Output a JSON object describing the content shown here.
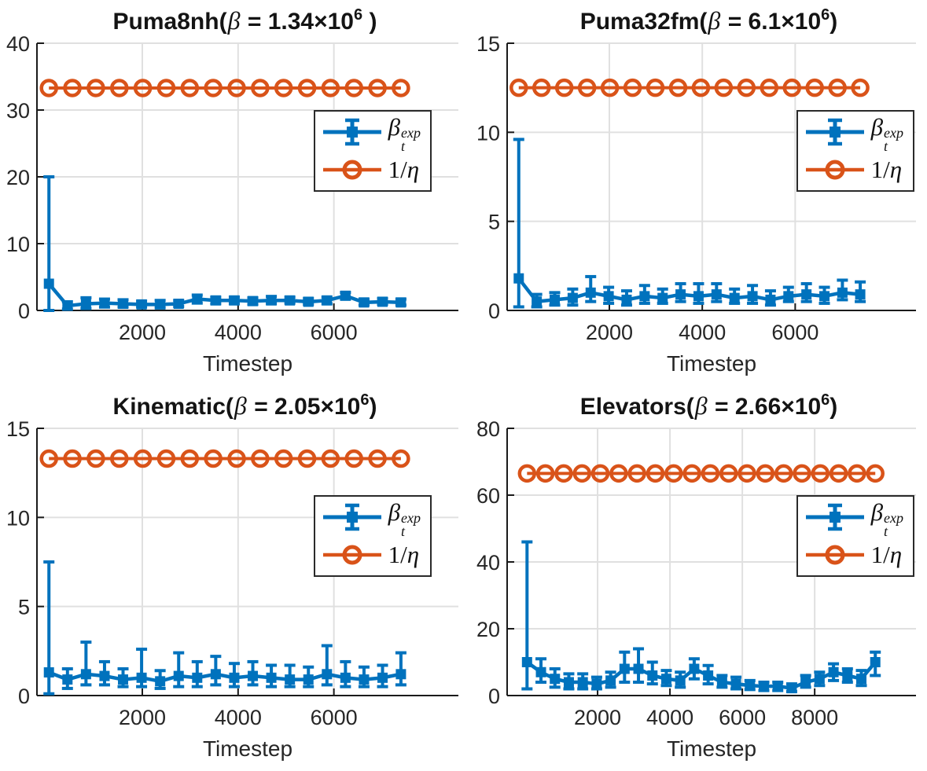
{
  "colors": {
    "beta_series": "#0072BD",
    "eta_series": "#D95319",
    "grid": "#E0E0E0",
    "axis": "#1a1a1a",
    "tick_text": "#262626"
  },
  "legend": {
    "beta": {
      "base": "β",
      "sub": "t",
      "sup": "exp"
    },
    "eta": {
      "num": "1/",
      "sym": "η"
    }
  },
  "chart_data": [
    {
      "type": "line",
      "dataset": "Puma8nh",
      "title": "Puma8nh(β = 1.34×10^6 )",
      "title_parts": {
        "name": "Puma8nh(",
        "beta": "β",
        "eq": " = 1.34×10",
        "exp": "6",
        "close": " )"
      },
      "xlabel": "Timestep",
      "xlim": [
        -200,
        8600
      ],
      "ylim": [
        0,
        40
      ],
      "xticks": [
        2000,
        4000,
        6000
      ],
      "yticks": [
        0,
        10,
        20,
        30,
        40
      ],
      "grid": true,
      "legend_position": "upper right",
      "series": [
        {
          "name": "beta_t_exp",
          "label": "β_t^exp",
          "type": "errorbar",
          "color": "#0072BD",
          "x": [
            50,
            437,
            824,
            1211,
            1598,
            1985,
            2372,
            2759,
            3146,
            3533,
            3920,
            4307,
            4694,
            5081,
            5468,
            5855,
            6242,
            6629,
            7016,
            7400
          ],
          "y": [
            4.0,
            0.7,
            1.0,
            1.1,
            1.0,
            0.9,
            0.9,
            1.0,
            1.7,
            1.5,
            1.5,
            1.4,
            1.5,
            1.5,
            1.3,
            1.5,
            2.2,
            1.2,
            1.3,
            1.2
          ],
          "y_lo": [
            0.0,
            0.2,
            0.3,
            0.5,
            0.5,
            0.5,
            0.4,
            0.6,
            1.1,
            1.0,
            1.0,
            0.9,
            1.0,
            1.1,
            0.9,
            1.0,
            1.7,
            0.8,
            0.9,
            0.8
          ],
          "y_hi": [
            20.0,
            1.3,
            1.9,
            1.7,
            1.6,
            1.4,
            1.5,
            1.5,
            2.3,
            2.0,
            2.0,
            1.9,
            2.1,
            2.0,
            1.8,
            2.0,
            2.7,
            1.7,
            1.8,
            1.7
          ]
        },
        {
          "name": "one_over_eta",
          "label": "1/η",
          "type": "line_circles",
          "color": "#D95319",
          "value": 33.3,
          "x_start": 50,
          "x_end": 7400,
          "n_markers": 16
        }
      ]
    },
    {
      "type": "line",
      "dataset": "Puma32fm",
      "title": "Puma32fm(β = 6.1×10^6)",
      "title_parts": {
        "name": "Puma32fm(",
        "beta": "β",
        "eq": " = 6.1×10",
        "exp": "6",
        "close": ")"
      },
      "xlabel": "Timestep",
      "xlim": [
        -200,
        8600
      ],
      "ylim": [
        0,
        15
      ],
      "xticks": [
        2000,
        4000,
        6000
      ],
      "yticks": [
        0,
        5,
        10,
        15
      ],
      "grid": true,
      "legend_position": "upper right",
      "series": [
        {
          "name": "beta_t_exp",
          "label": "β_t^exp",
          "type": "errorbar",
          "color": "#0072BD",
          "x": [
            50,
            437,
            824,
            1211,
            1598,
            1985,
            2372,
            2759,
            3146,
            3533,
            3920,
            4307,
            4694,
            5081,
            5468,
            5855,
            6242,
            6629,
            7016,
            7400
          ],
          "y": [
            1.8,
            0.5,
            0.6,
            0.7,
            1.0,
            0.8,
            0.6,
            0.8,
            0.7,
            0.9,
            0.8,
            0.9,
            0.7,
            0.8,
            0.6,
            0.8,
            0.9,
            0.8,
            1.0,
            0.9
          ],
          "y_lo": [
            0.2,
            0.2,
            0.3,
            0.3,
            0.5,
            0.4,
            0.3,
            0.4,
            0.4,
            0.5,
            0.4,
            0.5,
            0.4,
            0.4,
            0.3,
            0.5,
            0.5,
            0.4,
            0.6,
            0.5
          ],
          "y_hi": [
            9.6,
            0.9,
            1.0,
            1.2,
            1.9,
            1.3,
            1.1,
            1.4,
            1.2,
            1.5,
            1.5,
            1.5,
            1.2,
            1.4,
            1.1,
            1.3,
            1.5,
            1.3,
            1.7,
            1.6
          ]
        },
        {
          "name": "one_over_eta",
          "label": "1/η",
          "type": "line_circles",
          "color": "#D95319",
          "value": 12.5,
          "x_start": 50,
          "x_end": 7400,
          "n_markers": 16
        }
      ]
    },
    {
      "type": "line",
      "dataset": "Kinematic",
      "title": "Kinematic(β = 2.05×10^6)",
      "title_parts": {
        "name": "Kinematic(",
        "beta": "β",
        "eq": " = 2.05×10",
        "exp": "6",
        "close": ")"
      },
      "xlabel": "Timestep",
      "xlim": [
        -200,
        8600
      ],
      "ylim": [
        0,
        15
      ],
      "xticks": [
        2000,
        4000,
        6000
      ],
      "yticks": [
        0,
        5,
        10,
        15
      ],
      "grid": true,
      "legend_position": "upper right",
      "series": [
        {
          "name": "beta_t_exp",
          "label": "β_t^exp",
          "type": "errorbar",
          "color": "#0072BD",
          "x": [
            50,
            437,
            824,
            1211,
            1598,
            1985,
            2372,
            2759,
            3146,
            3533,
            3920,
            4307,
            4694,
            5081,
            5468,
            5855,
            6242,
            6629,
            7016,
            7400
          ],
          "y": [
            1.3,
            0.9,
            1.2,
            1.1,
            0.9,
            1.0,
            0.8,
            1.1,
            1.0,
            1.2,
            1.0,
            1.1,
            1.0,
            0.9,
            0.9,
            1.2,
            1.0,
            0.9,
            1.0,
            1.2
          ],
          "y_lo": [
            0.1,
            0.4,
            0.6,
            0.6,
            0.5,
            0.5,
            0.4,
            0.5,
            0.5,
            0.6,
            0.5,
            0.6,
            0.5,
            0.5,
            0.5,
            0.6,
            0.5,
            0.5,
            0.5,
            0.6
          ],
          "y_hi": [
            7.5,
            1.5,
            3.0,
            1.9,
            1.5,
            2.6,
            1.4,
            2.4,
            1.9,
            2.2,
            1.8,
            1.9,
            1.7,
            1.7,
            1.6,
            2.8,
            1.9,
            1.6,
            1.7,
            2.4
          ]
        },
        {
          "name": "one_over_eta",
          "label": "1/η",
          "type": "line_circles",
          "color": "#D95319",
          "value": 13.3,
          "x_start": 50,
          "x_end": 7400,
          "n_markers": 16
        }
      ]
    },
    {
      "type": "line",
      "dataset": "Elevators",
      "title": "Elevators(β = 2.66×10^6)",
      "title_parts": {
        "name": "Elevators(",
        "beta": "β",
        "eq": " = 2.66×10",
        "exp": "6",
        "close": ")"
      },
      "xlabel": "Timestep",
      "xlim": [
        -500,
        10800
      ],
      "ylim": [
        0,
        80
      ],
      "xticks": [
        2000,
        4000,
        6000,
        8000
      ],
      "yticks": [
        0,
        20,
        40,
        60,
        80
      ],
      "grid": true,
      "legend_position": "upper right",
      "series": [
        {
          "name": "beta_t_exp",
          "label": "β_t^exp",
          "type": "errorbar",
          "color": "#0072BD",
          "x": [
            50,
            435,
            820,
            1205,
            1590,
            1975,
            2360,
            2745,
            3130,
            3515,
            3900,
            4285,
            4670,
            5055,
            5440,
            5825,
            6210,
            6595,
            6980,
            7365,
            7750,
            8135,
            8520,
            8905,
            9290,
            9675
          ],
          "y": [
            10,
            7,
            5,
            4,
            4,
            3.5,
            4.5,
            8,
            8,
            6,
            5,
            4.5,
            8,
            6,
            4,
            3.5,
            3,
            2.8,
            2.8,
            2.2,
            4,
            5,
            7,
            6,
            5,
            10
          ],
          "y_lo": [
            2,
            4,
            2.5,
            2,
            2,
            2,
            2.5,
            4,
            4,
            3.5,
            3,
            2.5,
            5,
            3.5,
            2.5,
            2,
            1.8,
            1.5,
            1.5,
            1.2,
            2.5,
            3,
            4.5,
            4,
            3,
            6
          ],
          "y_hi": [
            46,
            11,
            8,
            6.5,
            6.5,
            5.5,
            7,
            13,
            14,
            10,
            7.5,
            7,
            11,
            9,
            6,
            5.5,
            4.5,
            4,
            4,
            3.5,
            6,
            7,
            9.5,
            8,
            7.5,
            13
          ]
        },
        {
          "name": "one_over_eta",
          "label": "1/η",
          "type": "line_circles",
          "color": "#D95319",
          "value": 66.5,
          "x_start": 50,
          "x_end": 9675,
          "n_markers": 20
        }
      ]
    }
  ]
}
